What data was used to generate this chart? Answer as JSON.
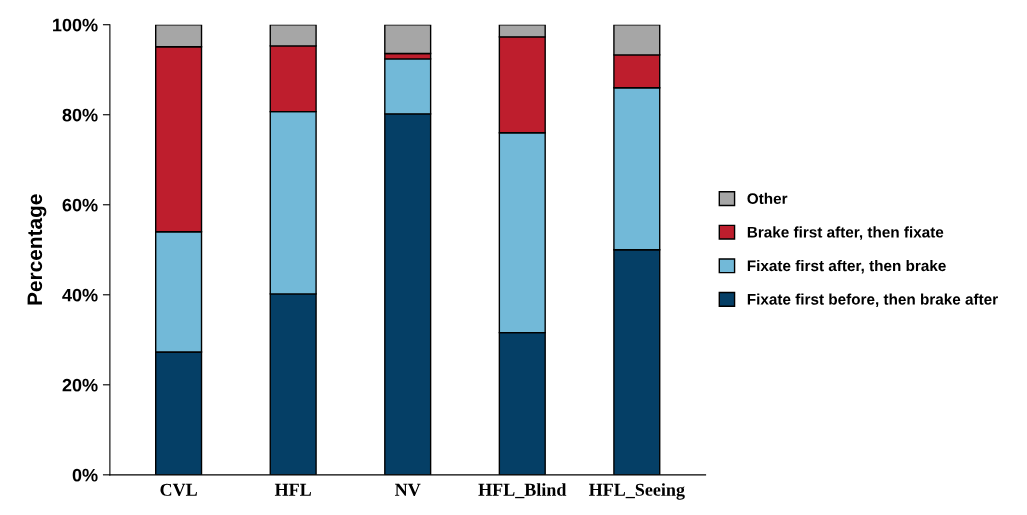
{
  "chart_data": {
    "type": "bar",
    "stacked": true,
    "ylabel": "Percentage",
    "categories": [
      "CVL",
      "HFL",
      "NV",
      "HFL_Blind",
      "HFL_Seeing"
    ],
    "series": [
      {
        "name": "Fixate first before, then brake after",
        "color": "#053f66",
        "values": [
          27.3,
          40.2,
          80.2,
          31.6,
          50.0
        ]
      },
      {
        "name": "Fixate first after, then brake",
        "color": "#72b9d8",
        "values": [
          26.7,
          40.5,
          12.2,
          44.4,
          36.0
        ]
      },
      {
        "name": "Brake first after, then fixate",
        "color": "#be1e2d",
        "values": [
          41.1,
          14.6,
          1.2,
          21.3,
          7.3
        ]
      },
      {
        "name": "Other",
        "color": "#a6a6a6",
        "values": [
          4.9,
          4.7,
          6.4,
          2.7,
          6.7
        ]
      }
    ],
    "ylim": [
      0,
      100
    ],
    "yticks": [
      {
        "value": 0,
        "label": "0%"
      },
      {
        "value": 20,
        "label": "20%"
      },
      {
        "value": 40,
        "label": "40%"
      },
      {
        "value": 60,
        "label": "60%"
      },
      {
        "value": 80,
        "label": "80%"
      },
      {
        "value": 100,
        "label": "100%"
      }
    ],
    "grid": false,
    "legend": "right"
  }
}
